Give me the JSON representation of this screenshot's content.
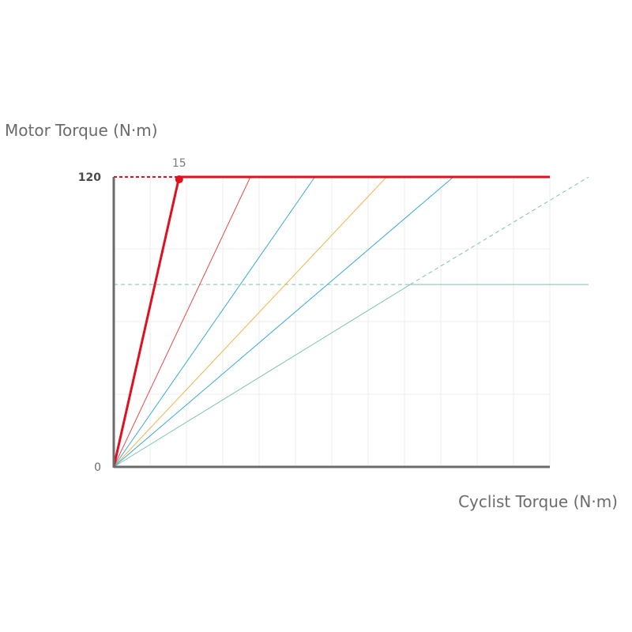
{
  "chart_data": {
    "type": "line",
    "title": "",
    "xlabel": "Cyclist Torque (N·m)",
    "ylabel": "Motor Torque (N·m)",
    "xlim": [
      0,
      90
    ],
    "ylim": [
      0,
      120
    ],
    "grid": true,
    "y_ticks": [
      {
        "value": 0,
        "label": "0",
        "bold": false
      },
      {
        "value": 120,
        "label": "120",
        "bold": true
      }
    ],
    "annotation": {
      "x": 13.5,
      "y": 119,
      "label": "15"
    },
    "colors": {
      "axis": "#6b6b6b",
      "grid": "#eeeeee",
      "primary": "#e0101e",
      "red": "#e34b4b",
      "blue": "#3aa9d8",
      "orange": "#f0b44a",
      "green": "#7cc4a8"
    },
    "series": [
      {
        "color": "#e0101e",
        "width": 3,
        "x": [
          0,
          13.5,
          90
        ],
        "y": [
          0,
          120,
          120
        ]
      },
      {
        "color": "#e34b4b",
        "width": 1,
        "x": [
          0,
          28.2,
          90
        ],
        "y": [
          0,
          120,
          120
        ]
      },
      {
        "color": "#3aa9d8",
        "width": 1,
        "x": [
          0,
          41.5,
          90
        ],
        "y": [
          0,
          120,
          120
        ]
      },
      {
        "color": "#f0b44a",
        "width": 1,
        "x": [
          0,
          56.3,
          90
        ],
        "y": [
          0,
          120,
          120
        ]
      },
      {
        "color": "#3aa9d8",
        "width": 1,
        "x": [
          0,
          70.1,
          90
        ],
        "y": [
          0,
          120,
          120
        ]
      },
      {
        "color": "#7cc4a8",
        "width": 1,
        "x": [
          0,
          61.2,
          98
        ],
        "y": [
          0,
          75.5,
          75.5
        ]
      }
    ],
    "dashed_lines": [
      {
        "color": "#e0101e",
        "width": 2,
        "x": [
          0,
          13.5
        ],
        "y": [
          120,
          120
        ]
      },
      {
        "color": "#7cc4a8",
        "width": 1,
        "x": [
          0,
          61.2
        ],
        "y": [
          75.5,
          75.5
        ]
      },
      {
        "color": "#7cc4a8",
        "width": 1,
        "x": [
          61.2,
          98
        ],
        "y": [
          75.5,
          120
        ]
      }
    ]
  }
}
